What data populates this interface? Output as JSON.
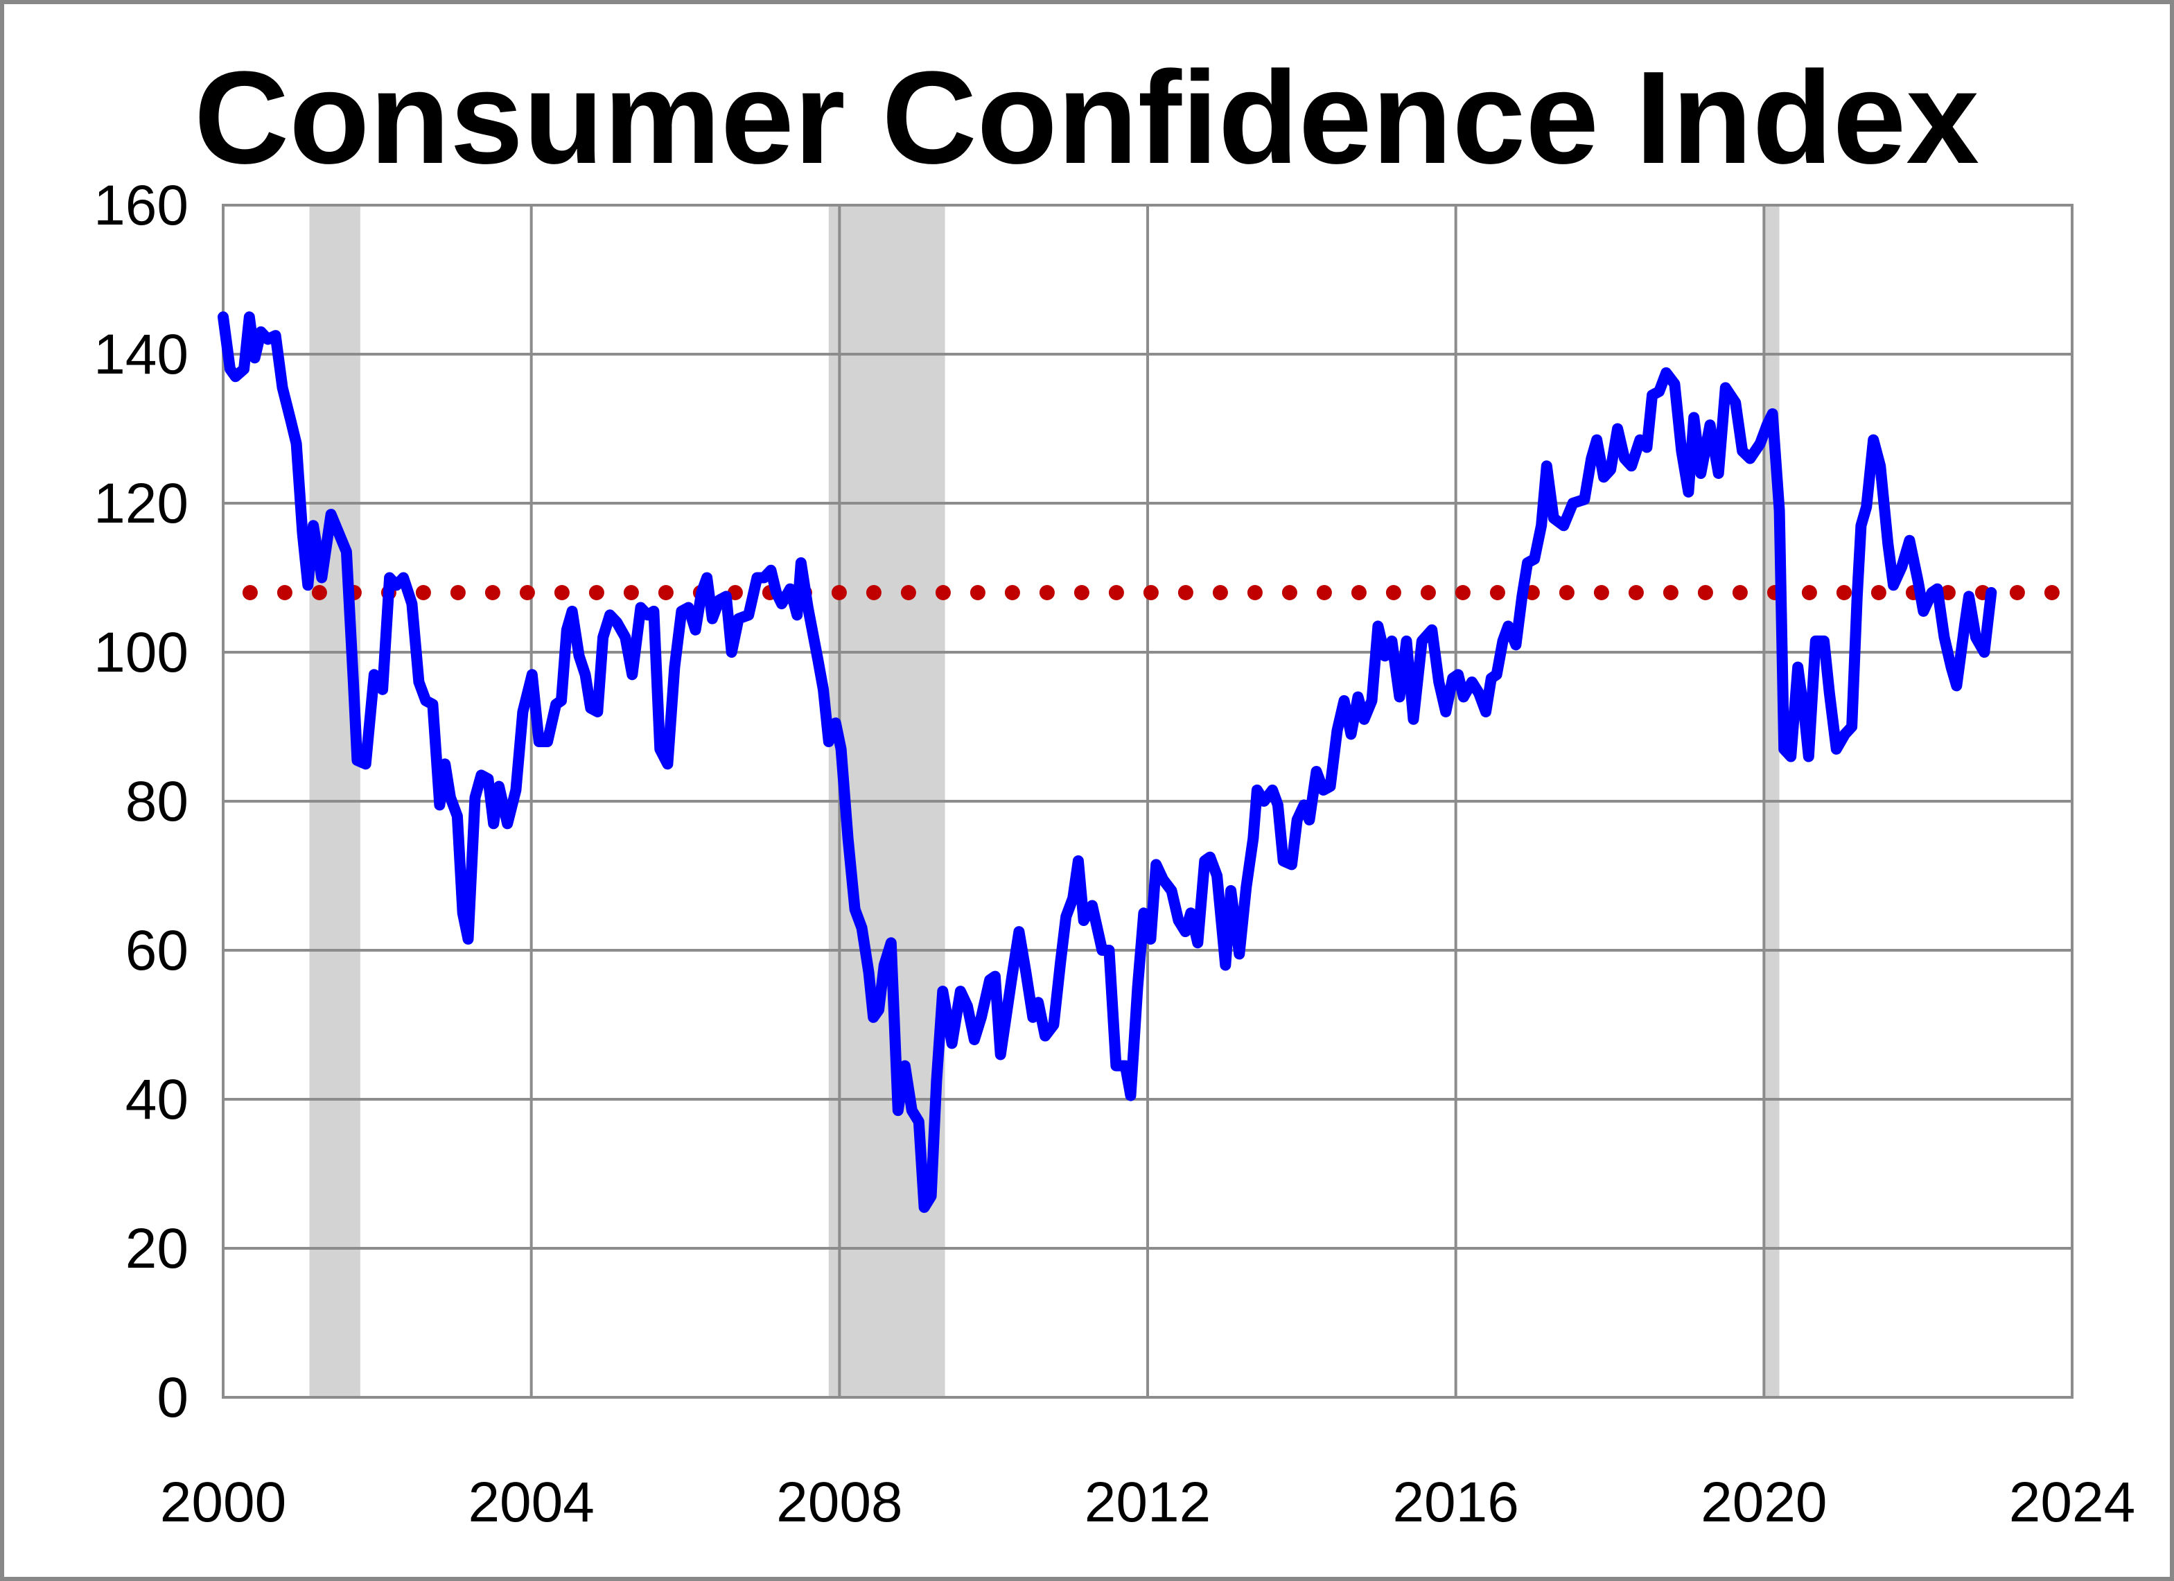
{
  "chart_data": {
    "type": "line",
    "title": "Consumer Confidence Index",
    "xlabel": "",
    "ylabel": "",
    "xlim": [
      2000,
      2024
    ],
    "ylim": [
      0,
      160
    ],
    "grid": true,
    "x_ticks": [
      "2000",
      "2004",
      "2008",
      "2012",
      "2016",
      "2020",
      "2024"
    ],
    "y_ticks": [
      "0",
      "20",
      "40",
      "60",
      "80",
      "100",
      "120",
      "140",
      "160"
    ],
    "recessions": [
      [
        2001.12,
        2001.78
      ],
      [
        2007.86,
        2009.37
      ],
      [
        2020.0,
        2020.2
      ]
    ],
    "average_line": {
      "value": 108,
      "color": "#c00000",
      "style": "dotted"
    },
    "series": [
      {
        "name": "Consumer Confidence Index",
        "color": "#0000ff",
        "x": [
          2000.0,
          2000.09,
          2000.16,
          2000.27,
          2000.34,
          2000.41,
          2000.49,
          2000.58,
          2000.68,
          2000.77,
          2000.88,
          2000.95,
          2001.03,
          2001.1,
          2001.17,
          2001.28,
          2001.4,
          2001.6,
          2001.69,
          2001.74,
          2001.85,
          2001.96,
          2002.07,
          2002.16,
          2002.25,
          2002.34,
          2002.45,
          2002.54,
          2002.63,
          2002.72,
          2002.81,
          2002.88,
          2002.95,
          2003.04,
          2003.11,
          2003.18,
          2003.27,
          2003.35,
          2003.44,
          2003.51,
          2003.58,
          2003.69,
          2003.8,
          2003.89,
          2004.01,
          2004.1,
          2004.21,
          2004.32,
          2004.39,
          2004.46,
          2004.53,
          2004.62,
          2004.7,
          2004.77,
          2004.86,
          2004.93,
          2005.02,
          2005.11,
          2005.22,
          2005.31,
          2005.42,
          2005.51,
          2005.59,
          2005.67,
          2005.77,
          2005.86,
          2005.95,
          2006.04,
          2006.13,
          2006.21,
          2006.28,
          2006.35,
          2006.44,
          2006.53,
          2006.6,
          2006.69,
          2006.82,
          2006.93,
          2007.02,
          2007.11,
          2007.18,
          2007.25,
          2007.36,
          2007.45,
          2007.5,
          2007.59,
          2007.72,
          2007.79,
          2007.86,
          2007.95,
          2008.02,
          2008.11,
          2008.2,
          2008.29,
          2008.38,
          2008.44,
          2008.51,
          2008.58,
          2008.67,
          2008.76,
          2008.85,
          2008.94,
          2009.03,
          2009.1,
          2009.19,
          2009.26,
          2009.34,
          2009.46,
          2009.57,
          2009.66,
          2009.75,
          2009.84,
          2009.95,
          2010.02,
          2010.09,
          2010.24,
          2010.33,
          2010.42,
          2010.51,
          2010.58,
          2010.67,
          2010.78,
          2010.87,
          2010.94,
          2011.03,
          2011.1,
          2011.17,
          2011.28,
          2011.41,
          2011.5,
          2011.59,
          2011.71,
          2011.78,
          2011.87,
          2011.95,
          2012.04,
          2012.11,
          2012.2,
          2012.31,
          2012.4,
          2012.49,
          2012.56,
          2012.65,
          2012.74,
          2012.81,
          2012.9,
          2013.01,
          2013.08,
          2013.19,
          2013.28,
          2013.37,
          2013.42,
          2013.51,
          2013.62,
          2013.69,
          2013.76,
          2013.87,
          2013.94,
          2014.03,
          2014.1,
          2014.19,
          2014.28,
          2014.37,
          2014.46,
          2014.55,
          2014.64,
          2014.73,
          2014.81,
          2014.91,
          2014.99,
          2015.08,
          2015.17,
          2015.27,
          2015.36,
          2015.45,
          2015.56,
          2015.69,
          2015.78,
          2015.87,
          2015.96,
          2016.03,
          2016.1,
          2016.21,
          2016.3,
          2016.39,
          2016.46,
          2016.53,
          2016.61,
          2016.68,
          2016.78,
          2016.86,
          2016.93,
          2017.02,
          2017.11,
          2017.18,
          2017.27,
          2017.4,
          2017.52,
          2017.67,
          2017.76,
          2017.83,
          2017.92,
          2018.01,
          2018.1,
          2018.19,
          2018.28,
          2018.39,
          2018.48,
          2018.55,
          2018.64,
          2018.73,
          2018.84,
          2018.93,
          2019.02,
          2019.09,
          2019.18,
          2019.3,
          2019.41,
          2019.5,
          2019.63,
          2019.72,
          2019.82,
          2019.95,
          2020.04,
          2020.11,
          2020.2,
          2020.26,
          2020.35,
          2020.44,
          2020.53,
          2020.58,
          2020.67,
          2020.78,
          2020.85,
          2020.94,
          2021.05,
          2021.14,
          2021.21,
          2021.26,
          2021.33,
          2021.42,
          2021.51,
          2021.61,
          2021.68,
          2021.79,
          2021.89,
          2022.0,
          2022.07,
          2022.18,
          2022.25,
          2022.34,
          2022.43,
          2022.5,
          2022.61,
          2022.66,
          2022.75,
          2022.86,
          2022.95
        ],
        "values": [
          145,
          138,
          137,
          138,
          145,
          139.5,
          143,
          142,
          142.5,
          135.5,
          131,
          128,
          116,
          109,
          117,
          110,
          118.5,
          113.5,
          96,
          85.5,
          85,
          97,
          95,
          110,
          109,
          110,
          106.5,
          96,
          93.5,
          93,
          79.5,
          85,
          80.5,
          78,
          65,
          61.5,
          80.5,
          83.5,
          83,
          77,
          82,
          77,
          81.5,
          92,
          97,
          88,
          88,
          93,
          93.5,
          103,
          105.5,
          99.5,
          97,
          92.5,
          92,
          102,
          105,
          104,
          102,
          97,
          106,
          105,
          105.5,
          87,
          85,
          98,
          105.5,
          106,
          103,
          108,
          110,
          104.5,
          107,
          107.5,
          100,
          104.5,
          105,
          110,
          110,
          111,
          108,
          106.5,
          108.5,
          105,
          112,
          106,
          99,
          95,
          88,
          90.5,
          87,
          75,
          65.5,
          63,
          57,
          51,
          52,
          58,
          61,
          38.5,
          44.5,
          38.5,
          37,
          25.5,
          27,
          42.5,
          54.5,
          47.5,
          54.5,
          52.5,
          48,
          51,
          56,
          56.5,
          46,
          56.5,
          62.5,
          57,
          51,
          53,
          48.5,
          50,
          58.5,
          64.5,
          67,
          72,
          64,
          66,
          60,
          60,
          44.5,
          44.5,
          40.5,
          55,
          65,
          61.5,
          71.5,
          69.5,
          68,
          64,
          62.5,
          65,
          61,
          72,
          72.5,
          70,
          58,
          68,
          59.5,
          68.5,
          75,
          81.5,
          80,
          81.5,
          79.5,
          72,
          71.5,
          77.5,
          79.5,
          77.5,
          84,
          81.5,
          82,
          89.5,
          93.5,
          89,
          94,
          91,
          93.5,
          103.5,
          99.5,
          101.5,
          94,
          101.5,
          91,
          101.5,
          103,
          96,
          92,
          96.5,
          97,
          94,
          96,
          94.5,
          92,
          96.5,
          97,
          101.5,
          103.5,
          101,
          107.5,
          112,
          112.5,
          117,
          125,
          118,
          117,
          120,
          120.5,
          126,
          128.5,
          123.5,
          124.5,
          130,
          126,
          125,
          128.5,
          127.5,
          134.5,
          135,
          137.5,
          136,
          127,
          121.5,
          131.5,
          124,
          130.5,
          124,
          135.5,
          133.5,
          127,
          126,
          128,
          130.5,
          132,
          119,
          87,
          86,
          98,
          91,
          86,
          101.5,
          101.5,
          94.5,
          87,
          89,
          90,
          107.5,
          117,
          119.5,
          128.5,
          125,
          114.5,
          109,
          111.5,
          115,
          109.5,
          105.5,
          108,
          108.5,
          102,
          98,
          95.5,
          104,
          107.5,
          102,
          100,
          108
        ]
      }
    ]
  }
}
